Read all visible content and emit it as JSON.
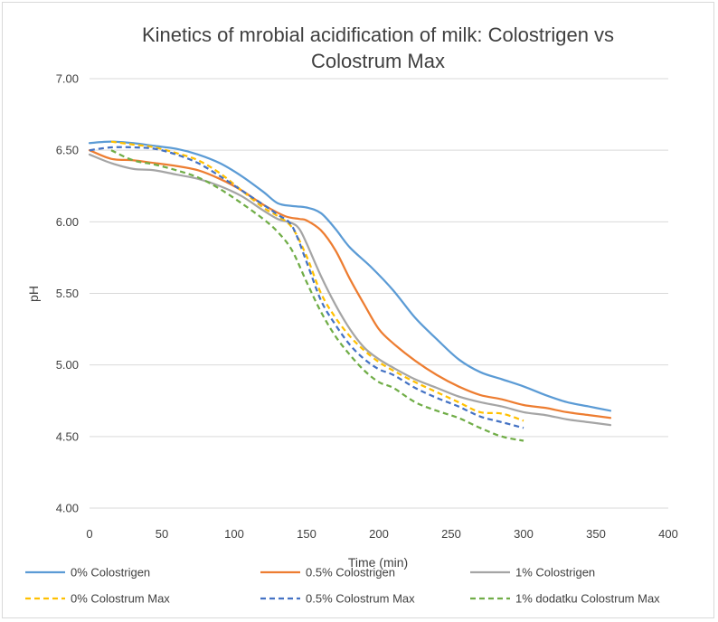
{
  "chart_data": {
    "type": "line",
    "title": "Kinetics of mrobial acidification of milk: Colostrigen vs Colostrum Max",
    "title_lines": [
      "Kinetics of mrobial acidification of milk: Colostrigen vs",
      "Colostrum Max"
    ],
    "xlabel": "Time (min)",
    "ylabel": "pH",
    "xlim": [
      0,
      400
    ],
    "ylim": [
      4.0,
      7.0
    ],
    "x_ticks": [
      "0",
      "50",
      "100",
      "150",
      "200",
      "250",
      "300",
      "350",
      "400"
    ],
    "y_ticks": [
      "4.00",
      "4.50",
      "5.00",
      "5.50",
      "6.00",
      "6.50",
      "7.00"
    ],
    "grid": "horizontal",
    "legend_position": "bottom",
    "series": [
      {
        "name": "0% Colostrigen",
        "color": "#5b9bd5",
        "dash": "solid",
        "x": [
          0,
          15,
          30,
          45,
          60,
          75,
          90,
          105,
          120,
          130,
          140,
          150,
          160,
          170,
          180,
          195,
          210,
          225,
          240,
          255,
          270,
          285,
          300,
          315,
          330,
          345,
          360
        ],
        "y": [
          6.55,
          6.56,
          6.55,
          6.53,
          6.51,
          6.47,
          6.41,
          6.32,
          6.21,
          6.13,
          6.11,
          6.1,
          6.06,
          5.95,
          5.82,
          5.68,
          5.52,
          5.33,
          5.18,
          5.04,
          4.95,
          4.9,
          4.85,
          4.79,
          4.74,
          4.71,
          4.68
        ]
      },
      {
        "name": "0.5% Colostrigen",
        "color": "#ed7d31",
        "dash": "solid",
        "x": [
          0,
          15,
          30,
          45,
          60,
          75,
          90,
          105,
          120,
          135,
          145,
          150,
          160,
          170,
          180,
          190,
          200,
          210,
          225,
          240,
          255,
          270,
          285,
          300,
          315,
          330,
          345,
          360
        ],
        "y": [
          6.5,
          6.44,
          6.43,
          6.41,
          6.39,
          6.36,
          6.3,
          6.22,
          6.12,
          6.04,
          6.02,
          6.01,
          5.94,
          5.8,
          5.6,
          5.42,
          5.25,
          5.15,
          5.03,
          4.93,
          4.85,
          4.79,
          4.76,
          4.72,
          4.7,
          4.67,
          4.65,
          4.63
        ]
      },
      {
        "name": "1% Colostrigen",
        "color": "#a5a5a5",
        "dash": "solid",
        "x": [
          0,
          15,
          30,
          45,
          60,
          75,
          90,
          105,
          120,
          130,
          140,
          145,
          150,
          160,
          170,
          180,
          190,
          200,
          210,
          225,
          240,
          255,
          270,
          285,
          300,
          315,
          330,
          345,
          360
        ],
        "y": [
          6.47,
          6.41,
          6.37,
          6.36,
          6.33,
          6.3,
          6.25,
          6.18,
          6.08,
          6.02,
          5.99,
          5.95,
          5.85,
          5.62,
          5.42,
          5.25,
          5.12,
          5.04,
          4.98,
          4.9,
          4.84,
          4.78,
          4.74,
          4.71,
          4.67,
          4.65,
          4.62,
          4.6,
          4.58
        ]
      },
      {
        "name": "0% Colostrum Max",
        "color": "#ffc000",
        "dash": "dashed",
        "x": [
          15,
          30,
          45,
          60,
          75,
          90,
          105,
          120,
          130,
          140,
          150,
          160,
          170,
          180,
          190,
          200,
          210,
          225,
          240,
          255,
          270,
          285,
          300
        ],
        "y": [
          6.56,
          6.54,
          6.52,
          6.48,
          6.43,
          6.34,
          6.22,
          6.1,
          6.04,
          5.96,
          5.76,
          5.5,
          5.33,
          5.2,
          5.1,
          5.02,
          4.96,
          4.88,
          4.81,
          4.74,
          4.67,
          4.66,
          4.61
        ]
      },
      {
        "name": "0.5% Colostrum Max",
        "color": "#4472c4",
        "dash": "dashed",
        "x": [
          0,
          15,
          30,
          45,
          60,
          75,
          90,
          105,
          120,
          130,
          140,
          150,
          160,
          170,
          180,
          190,
          200,
          210,
          225,
          240,
          255,
          270,
          285,
          300
        ],
        "y": [
          6.5,
          6.52,
          6.52,
          6.51,
          6.47,
          6.41,
          6.32,
          6.22,
          6.12,
          6.05,
          5.97,
          5.72,
          5.45,
          5.28,
          5.14,
          5.04,
          4.97,
          4.93,
          4.84,
          4.77,
          4.71,
          4.64,
          4.6,
          4.56
        ]
      },
      {
        "name": "1% dodatku Colostrum Max",
        "color": "#70ad47",
        "dash": "dashed",
        "x": [
          15,
          30,
          45,
          60,
          75,
          90,
          105,
          120,
          130,
          140,
          150,
          160,
          170,
          180,
          190,
          200,
          210,
          225,
          240,
          255,
          270,
          285,
          300
        ],
        "y": [
          6.5,
          6.43,
          6.4,
          6.36,
          6.31,
          6.23,
          6.13,
          6.02,
          5.93,
          5.8,
          5.58,
          5.37,
          5.2,
          5.07,
          4.96,
          4.88,
          4.84,
          4.74,
          4.68,
          4.63,
          4.56,
          4.5,
          4.47
        ]
      }
    ]
  }
}
